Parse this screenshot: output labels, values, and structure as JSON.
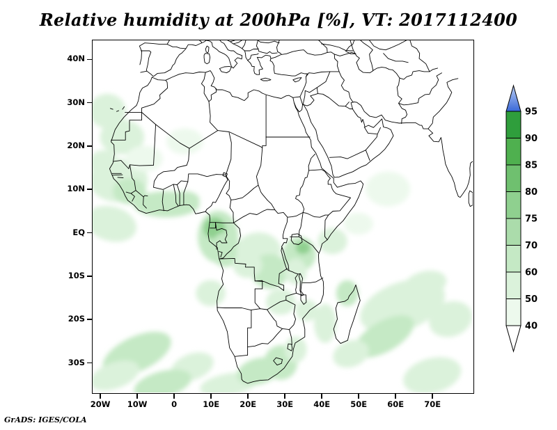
{
  "title": "Relative humidity at 200hPa [%], VT: 2017112400",
  "credit": "GrADS: IGES/COLA",
  "axes": {
    "lat_ticks": [
      {
        "value": 40,
        "label": "40N"
      },
      {
        "value": 30,
        "label": "30N"
      },
      {
        "value": 20,
        "label": "20N"
      },
      {
        "value": 10,
        "label": "10N"
      },
      {
        "value": 0,
        "label": "EQ"
      },
      {
        "value": -10,
        "label": "10S"
      },
      {
        "value": -20,
        "label": "20S"
      },
      {
        "value": -30,
        "label": "30S"
      }
    ],
    "lon_ticks": [
      {
        "value": -20,
        "label": "20W"
      },
      {
        "value": -10,
        "label": "10W"
      },
      {
        "value": 0,
        "label": "0"
      },
      {
        "value": 10,
        "label": "10E"
      },
      {
        "value": 20,
        "label": "20E"
      },
      {
        "value": 30,
        "label": "30E"
      },
      {
        "value": 40,
        "label": "40E"
      },
      {
        "value": 50,
        "label": "50E"
      },
      {
        "value": 60,
        "label": "60E"
      },
      {
        "value": 70,
        "label": "70E"
      }
    ]
  },
  "colorbar": {
    "position": "right",
    "tick_labels": [
      "95",
      "90",
      "85",
      "80",
      "75",
      "70",
      "60",
      "50",
      "40"
    ],
    "tick_values": [
      95,
      90,
      85,
      80,
      75,
      70,
      60,
      50,
      40
    ],
    "over_color": "#3a68d8",
    "segment_colors": [
      "#2f9e3c",
      "#4fb04f",
      "#6fc06f",
      "#8fd08f",
      "#abdcab",
      "#c5e9c5",
      "#dbf2db",
      "#edf9ed"
    ],
    "under_color": "#ffffff"
  },
  "chart_data": {
    "type": "heatmap",
    "title": "Relative humidity at 200hPa [%], VT: 2017112400",
    "variable": "Relative humidity",
    "level": "200hPa",
    "units": "%",
    "valid_time": "2017112400",
    "projection": "latlon",
    "lon_range": [
      -22,
      81
    ],
    "lat_range": [
      -36.9,
      44.3
    ],
    "grid": false,
    "legend_position": "right",
    "contour_levels": [
      40,
      50,
      60,
      70,
      75,
      80,
      85,
      90,
      95
    ],
    "palette_levels": [
      40,
      50,
      60,
      70,
      75,
      80,
      85,
      90,
      95
    ],
    "palette_colors": [
      "#edf9ed",
      "#dbf2db",
      "#c5e9c5",
      "#abdcab",
      "#8fd08f",
      "#6fc06f",
      "#4fb04f",
      "#2f9e3c"
    ],
    "source": "GrADS: IGES/COLA",
    "shaded_regions": [
      {
        "lon": -15,
        "lat": 12,
        "rx": 8,
        "ry": 5,
        "rot": 0,
        "rh": 55
      },
      {
        "lon": -12,
        "lat": 9.5,
        "rx": 4.5,
        "ry": 3,
        "rot": 0,
        "rh": 65
      },
      {
        "lon": -19,
        "lat": 16,
        "rx": 4,
        "ry": 3,
        "rot": 0,
        "rh": 50
      },
      {
        "lon": -2,
        "lat": 6.5,
        "rx": 9,
        "ry": 3,
        "rot": 0,
        "rh": 60
      },
      {
        "lon": 3,
        "lat": 7.5,
        "rx": 4,
        "ry": 2,
        "rot": 0,
        "rh": 65
      },
      {
        "lon": -17,
        "lat": 2,
        "rx": 7,
        "ry": 4,
        "rot": 15,
        "rh": 50
      },
      {
        "lon": 12,
        "lat": -1,
        "rx": 5.5,
        "ry": 6,
        "rot": 0,
        "rh": 65
      },
      {
        "lon": 11,
        "lat": 1,
        "rx": 3,
        "ry": 2.5,
        "rot": 0,
        "rh": 75
      },
      {
        "lon": 14,
        "lat": -4,
        "rx": 4,
        "ry": 4,
        "rot": 0,
        "rh": 60
      },
      {
        "lon": 23,
        "lat": -4,
        "rx": 6,
        "ry": 4,
        "rot": 0,
        "rh": 55
      },
      {
        "lon": 26,
        "lat": -9,
        "rx": 5,
        "ry": 4,
        "rot": 0,
        "rh": 60
      },
      {
        "lon": 20,
        "lat": -7.5,
        "rx": 4,
        "ry": 3,
        "rot": 0,
        "rh": 50
      },
      {
        "lon": 29,
        "lat": -16,
        "rx": 4,
        "ry": 3,
        "rot": 0,
        "rh": 50
      },
      {
        "lon": 34,
        "lat": -5,
        "rx": 4.5,
        "ry": 4,
        "rot": 0,
        "rh": 65
      },
      {
        "lon": 35,
        "lat": -3.5,
        "rx": 2,
        "ry": 1.5,
        "rot": 0,
        "rh": 75
      },
      {
        "lon": 33,
        "lat": -9,
        "rx": 3,
        "ry": 3,
        "rot": 0,
        "rh": 55
      },
      {
        "lon": 43,
        "lat": -2,
        "rx": 4,
        "ry": 3,
        "rot": 0,
        "rh": 50
      },
      {
        "lon": 50,
        "lat": 2,
        "rx": 4,
        "ry": 2.5,
        "rot": 0,
        "rh": 45
      },
      {
        "lon": 47,
        "lat": -14,
        "rx": 3,
        "ry": 3,
        "rot": 0,
        "rh": 60
      },
      {
        "lon": 41,
        "lat": -21,
        "rx": 3,
        "ry": 4.5,
        "rot": 0,
        "rh": 55
      },
      {
        "lon": 62,
        "lat": -17,
        "rx": 12,
        "ry": 5.5,
        "rot": -20,
        "rh": 55
      },
      {
        "lon": 57,
        "lat": -24,
        "rx": 9,
        "ry": 3.5,
        "rot": -30,
        "rh": 60
      },
      {
        "lon": 68,
        "lat": -12,
        "rx": 6,
        "ry": 3,
        "rot": -15,
        "rh": 50
      },
      {
        "lon": 75,
        "lat": -20,
        "rx": 6,
        "ry": 4,
        "rot": -20,
        "rh": 55
      },
      {
        "lon": -10,
        "lat": -28,
        "rx": 10,
        "ry": 4,
        "rot": -25,
        "rh": 60
      },
      {
        "lon": -16,
        "lat": -33,
        "rx": 7,
        "ry": 3,
        "rot": -20,
        "rh": 55
      },
      {
        "lon": 5,
        "lat": -31,
        "rx": 6,
        "ry": 3,
        "rot": -20,
        "rh": 55
      },
      {
        "lon": 15,
        "lat": -35,
        "rx": 8,
        "ry": 2.5,
        "rot": -10,
        "rh": 55
      },
      {
        "lon": -3,
        "lat": -35,
        "rx": 8,
        "ry": 3,
        "rot": -15,
        "rh": 60
      },
      {
        "lon": 23,
        "lat": -32,
        "rx": 6,
        "ry": 3,
        "rot": -15,
        "rh": 60
      },
      {
        "lon": 29,
        "lat": -30,
        "rx": 4.5,
        "ry": 4,
        "rot": 0,
        "rh": 65
      },
      {
        "lon": 33,
        "lat": -27,
        "rx": 3,
        "ry": 3,
        "rot": 0,
        "rh": 55
      },
      {
        "lon": 10,
        "lat": -14,
        "rx": 4,
        "ry": 3,
        "rot": 0,
        "rh": 50
      },
      {
        "lon": 3,
        "lat": 21,
        "rx": 5,
        "ry": 3,
        "rot": 0,
        "rh": 45
      },
      {
        "lon": -14,
        "lat": 22,
        "rx": 6,
        "ry": 4,
        "rot": 0,
        "rh": 50
      },
      {
        "lon": -18,
        "lat": 28,
        "rx": 5,
        "ry": 4,
        "rot": 0,
        "rh": 50
      },
      {
        "lon": -8,
        "lat": 17,
        "rx": 5,
        "ry": 3,
        "rot": 0,
        "rh": 45
      },
      {
        "lon": 58,
        "lat": 10,
        "rx": 6,
        "ry": 4,
        "rot": 0,
        "rh": 45
      },
      {
        "lon": 70,
        "lat": -33,
        "rx": 8,
        "ry": 4,
        "rot": -15,
        "rh": 50
      },
      {
        "lon": 48,
        "lat": -28,
        "rx": 5,
        "ry": 3,
        "rot": -20,
        "rh": 50
      },
      {
        "lon": 36,
        "lat": -18,
        "rx": 3,
        "ry": 2.5,
        "rot": 0,
        "rh": 50
      }
    ]
  }
}
